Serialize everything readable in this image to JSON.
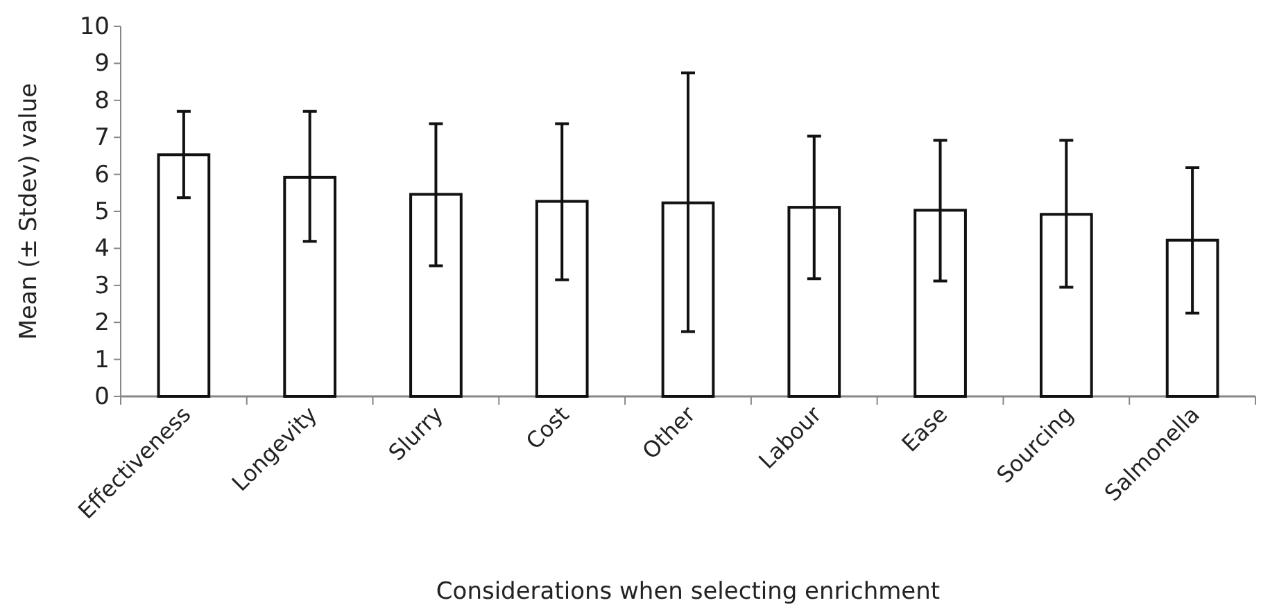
{
  "chart_data": {
    "type": "bar",
    "xlabel": "Considerations when selecting enrichment",
    "ylabel": "Mean (± Stdev) value",
    "categories": [
      "Effectiveness",
      "Longevity",
      "Slurry",
      "Cost",
      "Other",
      "Labour",
      "Ease",
      "Sourcing",
      "Salmonella"
    ],
    "values": [
      6.53,
      5.92,
      5.46,
      5.27,
      5.23,
      5.11,
      5.03,
      4.92,
      4.22
    ],
    "errors": [
      [
        5.37,
        7.7
      ],
      [
        4.19,
        7.7
      ],
      [
        3.53,
        7.37
      ],
      [
        3.15,
        7.37
      ],
      [
        1.75,
        8.74
      ],
      [
        3.18,
        7.03
      ],
      [
        3.12,
        6.92
      ],
      [
        2.95,
        6.92
      ],
      [
        2.25,
        6.18
      ]
    ],
    "color": "#ffffff",
    "ylim": [
      0,
      10
    ],
    "yticks": [
      0,
      1,
      2,
      3,
      4,
      5,
      6,
      7,
      8,
      9,
      10
    ],
    "grid": false
  }
}
